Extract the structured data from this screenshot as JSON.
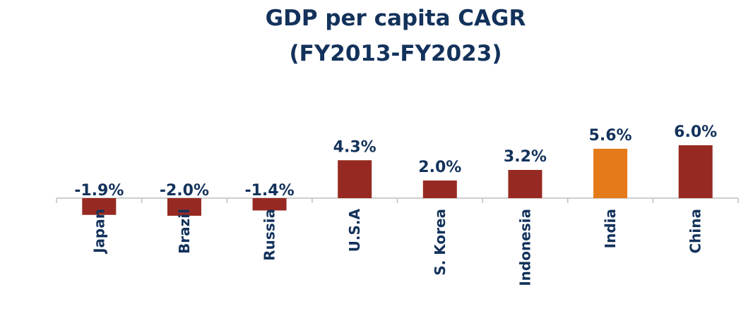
{
  "chart_data": {
    "type": "bar",
    "title": [
      "GDP per capita CAGR",
      "(FY2013-FY2023)"
    ],
    "categories": [
      "Japan",
      "Brazil",
      "Russia",
      "U.S.A",
      "S. Korea",
      "Indonesia",
      "India",
      "China"
    ],
    "values": [
      -1.9,
      -2.0,
      -1.4,
      4.3,
      2.0,
      3.2,
      5.6,
      6.0
    ],
    "value_labels": [
      "-1.9%",
      "-2.0%",
      "-1.4%",
      "4.3%",
      "2.0%",
      "3.2%",
      "5.6%",
      "6.0%"
    ],
    "colors": [
      "#962a22",
      "#962a22",
      "#962a22",
      "#962a22",
      "#962a22",
      "#962a22",
      "#e57a1b",
      "#962a22"
    ]
  }
}
